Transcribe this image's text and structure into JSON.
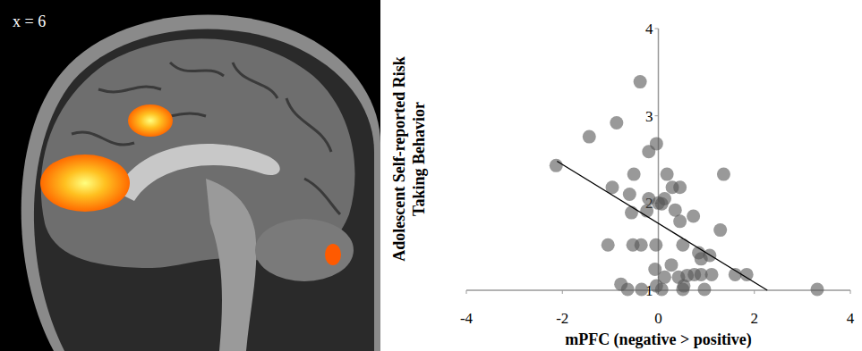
{
  "image": {
    "label": "x = 6"
  },
  "chart_data": {
    "type": "scatter",
    "xlabel": "mPFC (negative > positive)",
    "ylabel": [
      "Adolescent Self-reported Risk",
      "Taking Behavior"
    ],
    "xlim": [
      -4,
      4
    ],
    "ylim": [
      1,
      4
    ],
    "xticks": [
      -4,
      -2,
      0,
      2,
      4
    ],
    "yticks": [
      1,
      2,
      3,
      4
    ],
    "grid": false,
    "series": [
      {
        "type": "scatter",
        "color": "#555555",
        "marker": "circle",
        "x": [
          -0.38,
          -0.87,
          -1.44,
          -2.13,
          -0.04,
          -0.2,
          1.36,
          0.18,
          -0.51,
          -0.96,
          0.29,
          0.45,
          -0.6,
          -0.2,
          0.13,
          0.0,
          0.07,
          -0.56,
          -0.24,
          0.35,
          0.45,
          0.73,
          1.29,
          -0.53,
          -0.36,
          -0.05,
          0.51,
          0.84,
          1.07,
          0.89,
          -1.05,
          0.27,
          -0.07,
          0.42,
          0.6,
          0.75,
          0.89,
          1.11,
          1.6,
          1.84,
          -0.04,
          0.53,
          0.07,
          0.96,
          -0.78,
          -0.64,
          -0.35,
          0.51,
          3.31,
          0.13
        ],
        "values": [
          3.39,
          2.92,
          2.76,
          2.43,
          2.68,
          2.59,
          2.33,
          2.33,
          2.33,
          2.18,
          2.18,
          2.18,
          2.1,
          2.05,
          2.05,
          2.0,
          1.99,
          1.89,
          1.91,
          1.92,
          1.79,
          1.85,
          1.69,
          1.52,
          1.52,
          1.52,
          1.52,
          1.43,
          1.4,
          1.36,
          1.52,
          1.29,
          1.24,
          1.15,
          1.17,
          1.18,
          1.18,
          1.18,
          1.18,
          1.18,
          1.05,
          1.05,
          1.01,
          1.01,
          1.07,
          1.01,
          1.01,
          1.01,
          1.01,
          1.15
        ]
      },
      {
        "type": "line",
        "color": "#000000",
        "line_style": "solid",
        "x": [
          -2.11,
          2.27
        ],
        "values": [
          2.48,
          1.0
        ]
      }
    ]
  }
}
